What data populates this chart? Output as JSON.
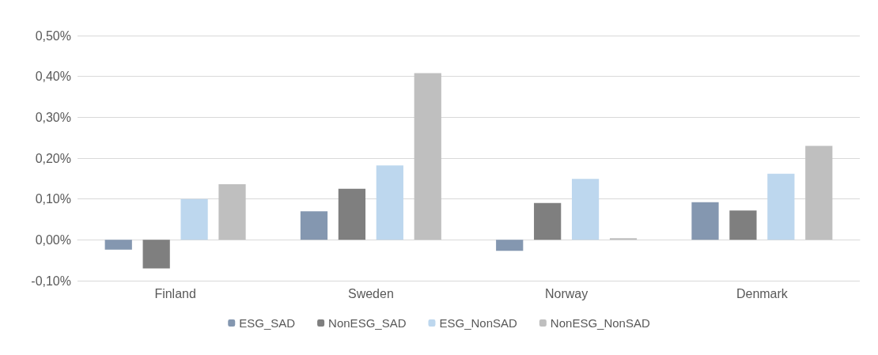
{
  "chart_data": {
    "type": "bar",
    "categories": [
      "Finland",
      "Sweden",
      "Norway",
      "Denmark"
    ],
    "series": [
      {
        "name": "ESG_SAD",
        "color": "#8497b0",
        "values": [
          -0.024,
          0.07,
          -0.027,
          0.092
        ]
      },
      {
        "name": "NonESG_SAD",
        "color": "#7f7f7f",
        "values": [
          -0.07,
          0.125,
          0.09,
          0.072
        ]
      },
      {
        "name": "ESG_NonSAD",
        "color": "#bdd7ee",
        "values": [
          0.1,
          0.182,
          0.149,
          0.162
        ]
      },
      {
        "name": "NonESG_NonSAD",
        "color": "#bfbfbf",
        "values": [
          0.136,
          0.408,
          0.004,
          0.23
        ]
      }
    ],
    "ylim": [
      -0.1,
      0.5
    ],
    "yticks": [
      {
        "value": -0.1,
        "label": "-0,10%"
      },
      {
        "value": 0,
        "label": "0,00%"
      },
      {
        "value": 0.1,
        "label": "0,10%"
      },
      {
        "value": 0.2,
        "label": "0,20%"
      },
      {
        "value": 0.3,
        "label": "0,30%"
      },
      {
        "value": 0.4,
        "label": "0,40%"
      },
      {
        "value": 0.5,
        "label": "0,50%"
      }
    ],
    "grid": "y",
    "legend": "bottom"
  }
}
